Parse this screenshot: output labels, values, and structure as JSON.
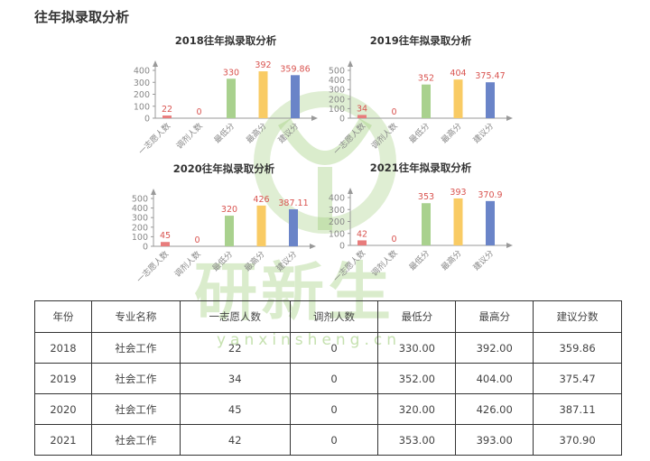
{
  "page_title": "往年拟录取分析",
  "watermark": {
    "logo_text": "研新生",
    "url_text": "yanxinsheng.cn"
  },
  "colors": {
    "first_choice": "#e87c7c",
    "adjusted": "#e87c7c",
    "min": "#a9d18e",
    "max": "#f9cb64",
    "suggested": "#6a84c8",
    "value_label": "#d9534f"
  },
  "chart_data": [
    {
      "type": "bar",
      "title": "2018往年拟录取分析",
      "categories": [
        "一志愿人数",
        "调剂人数",
        "最低分",
        "最高分",
        "建议分"
      ],
      "values": [
        22,
        0,
        330,
        392,
        359.86
      ],
      "value_labels": [
        "22",
        "0",
        "330",
        "392",
        "359.86"
      ],
      "ylim": [
        0,
        400
      ],
      "yticks": [
        "0",
        "100",
        "200",
        "300",
        "400"
      ],
      "grid": false
    },
    {
      "type": "bar",
      "title": "2019往年拟录取分析",
      "categories": [
        "一志愿人数",
        "调剂人数",
        "最低分",
        "最高分",
        "建议分"
      ],
      "values": [
        34,
        0,
        352,
        404,
        375.47
      ],
      "value_labels": [
        "34",
        "0",
        "352",
        "404",
        "375.47"
      ],
      "ylim": [
        0,
        500
      ],
      "yticks": [
        "0",
        "100",
        "200",
        "300",
        "400",
        "500"
      ],
      "grid": false
    },
    {
      "type": "bar",
      "title": "2020往年拟录取分析",
      "categories": [
        "一志愿人数",
        "调剂人数",
        "最低分",
        "最高分",
        "建议分"
      ],
      "values": [
        45,
        0,
        320,
        426,
        387.11
      ],
      "value_labels": [
        "45",
        "0",
        "320",
        "426",
        "387.11"
      ],
      "ylim": [
        0,
        500
      ],
      "yticks": [
        "0",
        "100",
        "200",
        "300",
        "400",
        "500"
      ],
      "grid": false
    },
    {
      "type": "bar",
      "title": "2021往年拟录取分析",
      "categories": [
        "一志愿人数",
        "调剂人数",
        "最低分",
        "最高分",
        "建议分"
      ],
      "values": [
        42,
        0,
        353,
        393,
        370.9
      ],
      "value_labels": [
        "42",
        "0",
        "353",
        "393",
        "370.9"
      ],
      "ylim": [
        0,
        400
      ],
      "yticks": [
        "0",
        "100",
        "200",
        "300",
        "400"
      ],
      "grid": false
    }
  ],
  "table": {
    "headers": [
      "年份",
      "专业名称",
      "一志愿人数",
      "调剂人数",
      "最低分",
      "最高分",
      "建议分数"
    ],
    "rows": [
      [
        "2018",
        "社会工作",
        "22",
        "0",
        "330.00",
        "392.00",
        "359.86"
      ],
      [
        "2019",
        "社会工作",
        "34",
        "0",
        "352.00",
        "404.00",
        "375.47"
      ],
      [
        "2020",
        "社会工作",
        "45",
        "0",
        "320.00",
        "426.00",
        "387.11"
      ],
      [
        "2021",
        "社会工作",
        "42",
        "0",
        "353.00",
        "393.00",
        "370.90"
      ]
    ]
  }
}
